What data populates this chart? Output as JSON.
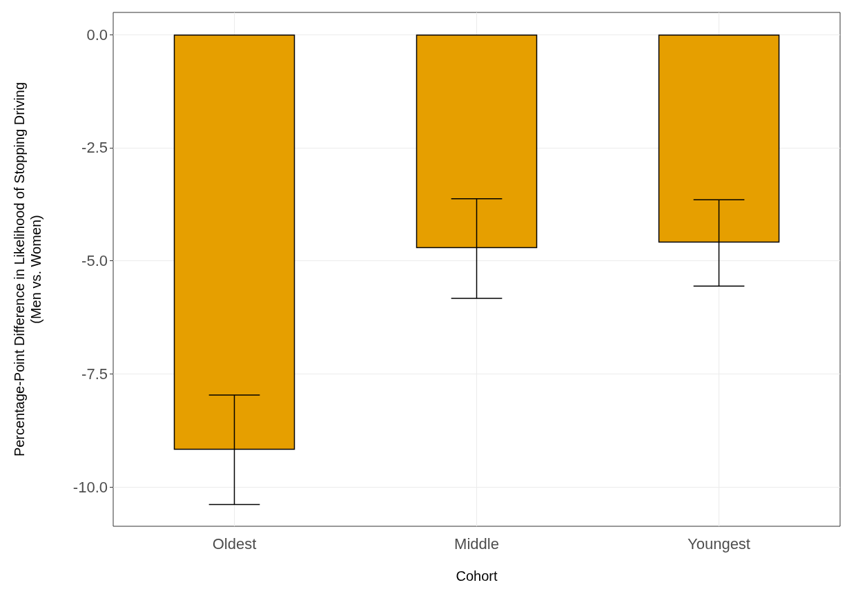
{
  "chart_data": {
    "type": "bar",
    "xlabel": "Cohort",
    "ylabel": "Percentage-Point Difference in Likelihood of Stopping Driving\n(Men vs. Women)",
    "categories": [
      "Oldest",
      "Middle",
      "Youngest"
    ],
    "values": [
      -9.18,
      -4.72,
      -4.6
    ],
    "errors": [
      [
        -10.39,
        -7.97
      ],
      [
        -5.83,
        -3.63
      ],
      [
        -5.56,
        -3.65
      ]
    ],
    "color": "#e69f00",
    "ylim": [
      -10.87,
      0.49
    ],
    "yticks": [
      {
        "value": -10,
        "label": "-10.0"
      },
      {
        "value": -7.5,
        "label": "-7.5"
      },
      {
        "value": -5,
        "label": "-5.0"
      },
      {
        "value": -2.5,
        "label": "-2.5"
      },
      {
        "value": 0,
        "label": "0.0"
      }
    ],
    "grid": true
  }
}
